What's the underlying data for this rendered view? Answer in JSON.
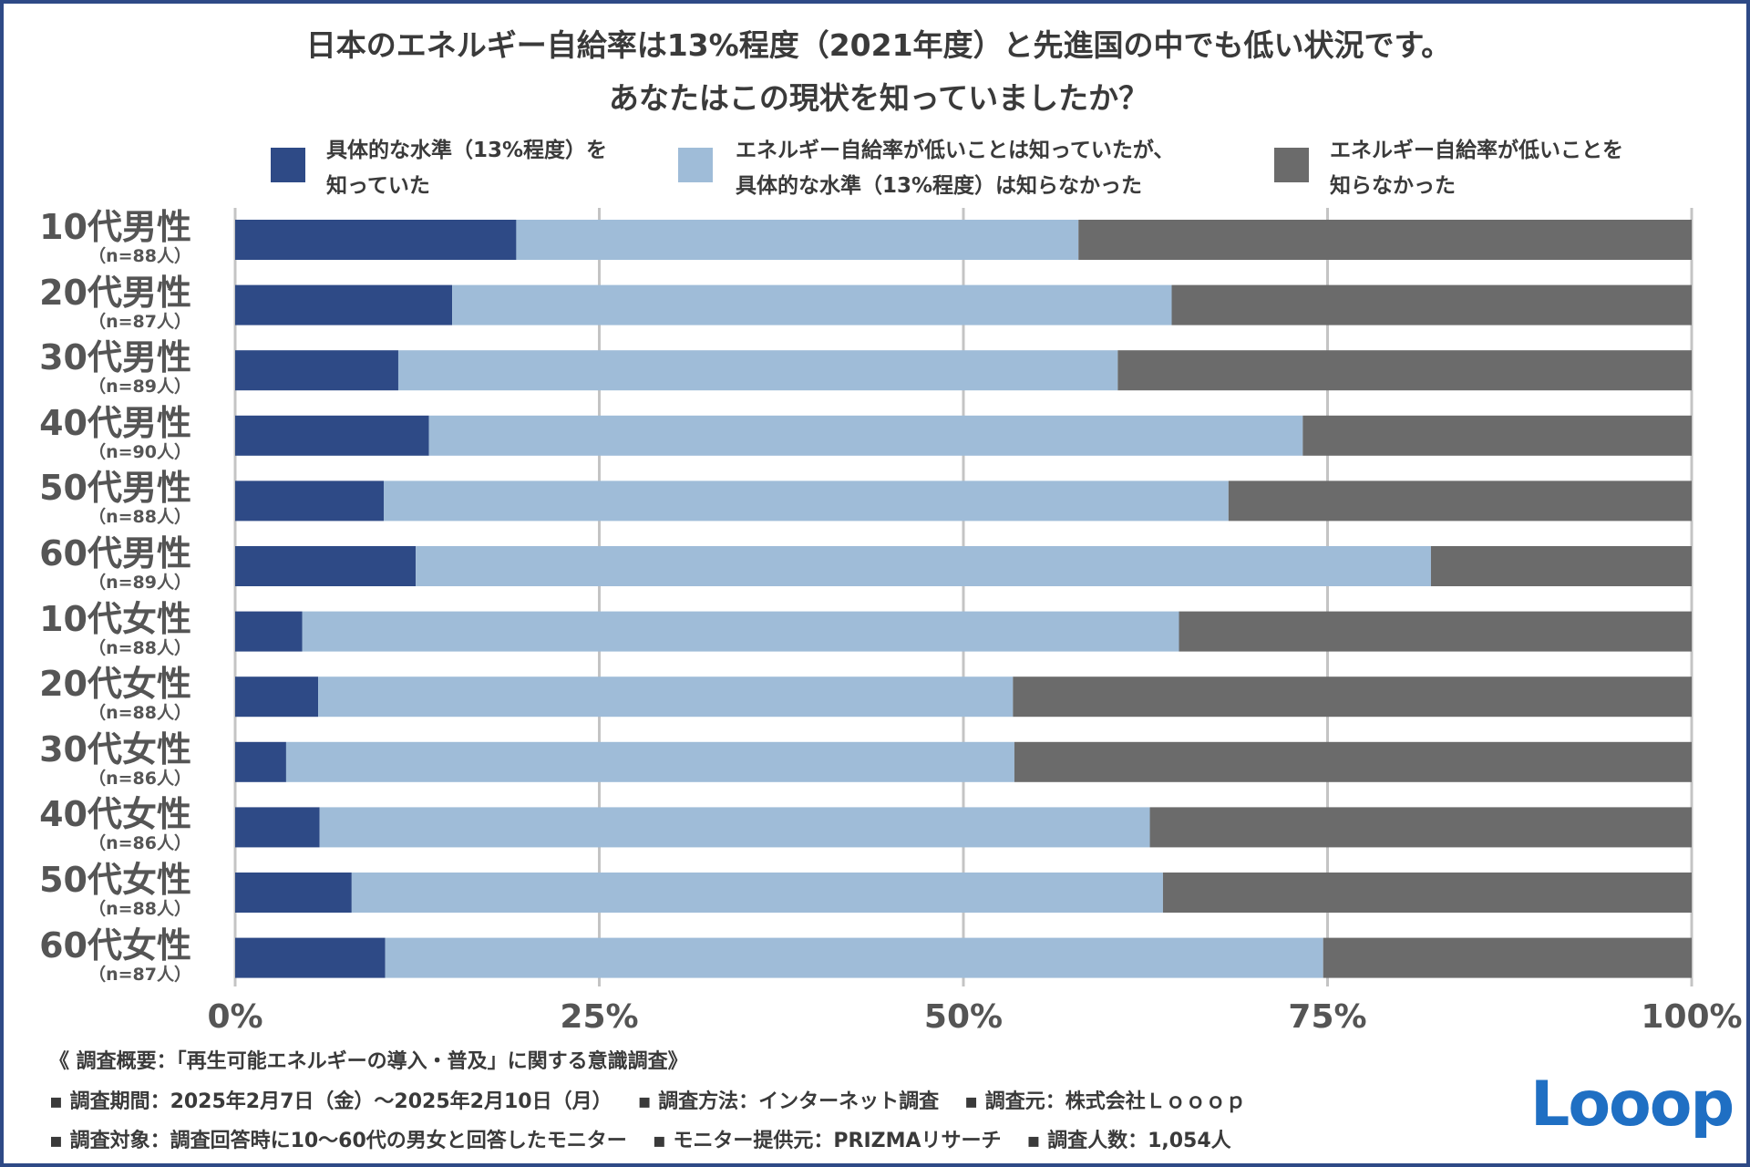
{
  "title": {
    "line1": "日本のエネルギー自給率は13%程度（2021年度）と先進国の中でも低い状況です。",
    "line2": "あなたはこの現状を知っていましたか？"
  },
  "colors": {
    "series1": "#2e4a86",
    "series2": "#9fbcd8",
    "series3": "#6b6b6b",
    "grid": "#c4c4c4",
    "border": "#2e4a86"
  },
  "legend": [
    {
      "line1": "具体的な水準（13%程度）を",
      "line2": "知っていた"
    },
    {
      "line1": "エネルギー自給率が低いことは知っていたが、",
      "line2": "具体的な水準（13%程度）は知らなかった"
    },
    {
      "line1": "エネルギー自給率が低いことを",
      "line2": "知らなかった"
    }
  ],
  "chart_data": {
    "type": "bar",
    "orientation": "horizontal",
    "stacked": true,
    "percent_stacked": true,
    "categories": [
      "10代男性",
      "20代男性",
      "30代男性",
      "40代男性",
      "50代男性",
      "60代男性",
      "10代女性",
      "20代女性",
      "30代女性",
      "40代女性",
      "50代女性",
      "60代女性"
    ],
    "sample_sizes": [
      "（n=88人）",
      "（n=87人）",
      "（n=89人）",
      "（n=90人）",
      "（n=88人）",
      "（n=89人）",
      "（n=88人）",
      "（n=88人）",
      "（n=86人）",
      "（n=86人）",
      "（n=88人）",
      "（n=87人）"
    ],
    "series": [
      {
        "name": "具体的な水準（13%程度）を知っていた",
        "values": [
          19.3,
          14.9,
          11.2,
          13.3,
          10.2,
          12.4,
          4.6,
          5.7,
          3.5,
          5.8,
          8.0,
          10.3
        ]
      },
      {
        "name": "エネルギー自給率が低いことは知っていたが、具体的な水準（13%程度）は知らなかった",
        "values": [
          38.6,
          49.4,
          49.4,
          60.0,
          58.0,
          69.7,
          60.2,
          47.7,
          50.0,
          57.0,
          55.7,
          64.4
        ]
      },
      {
        "name": "エネルギー自給率が低いことを知らなかった",
        "values": [
          42.1,
          35.7,
          39.4,
          26.7,
          31.8,
          17.9,
          35.2,
          46.6,
          46.5,
          37.2,
          36.3,
          25.3
        ]
      }
    ],
    "xlim": [
      0,
      100
    ],
    "xticks": [
      "0%",
      "25%",
      "50%",
      "75%",
      "100%"
    ],
    "grid": true,
    "legend_position": "top"
  },
  "footer": {
    "line1": "《 調査概要：「再生可能エネルギーの導入・普及」に関する意識調査》",
    "period": "▪ 調査期間：2025年2月7日（金）〜2025年2月10日（月）",
    "method": "▪ 調査方法：インターネット調査",
    "source": "▪ 調査元：株式会社Ｌｏｏｏｐ",
    "target": "▪ 調査対象：調査回答時に10〜60代の男女と回答したモニター",
    "provider": "▪ モニター提供元：PRIZMAリサーチ",
    "count": "▪ 調査人数：1,054人"
  },
  "logo": {
    "text": "Looop"
  }
}
